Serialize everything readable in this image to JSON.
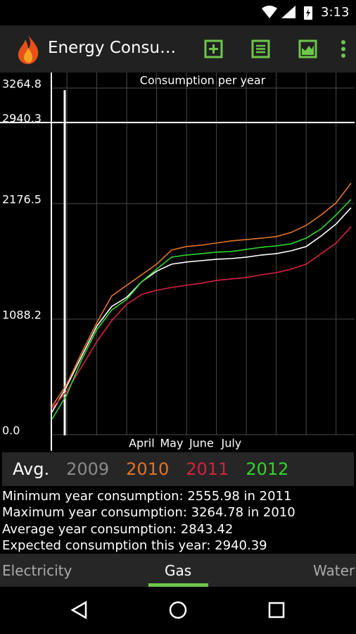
{
  "status_bar": {
    "time": "3:13"
  },
  "app_bar": {
    "title": "Energy Consu…"
  },
  "chart_data": {
    "type": "line",
    "title": "Consumption per year",
    "x": [
      1.5,
      2,
      2.5,
      3,
      3.5,
      4,
      4.5,
      5,
      5.5,
      6,
      6.5,
      7,
      7.5,
      8,
      8.5,
      9,
      9.5,
      10,
      10.5,
      11,
      11.5
    ],
    "xlim": [
      1.48,
      11.62
    ],
    "xticks": [
      2,
      3,
      4,
      5,
      6,
      7,
      8,
      9,
      10,
      11
    ],
    "month_labels": [
      {
        "value": 4.5,
        "label": "April"
      },
      {
        "value": 5.5,
        "label": "May"
      },
      {
        "value": 6.5,
        "label": "June"
      },
      {
        "value": 7.5,
        "label": "July"
      }
    ],
    "ylim": [
      0,
      3264.8
    ],
    "yticks": [
      {
        "value": 0,
        "label": "0.0"
      },
      1088.2,
      2176.5,
      2940.3,
      3264.8
    ],
    "grid": true,
    "ref_line": {
      "value": 2940.3,
      "color": "#ffffff"
    },
    "series": [
      {
        "name": "Avg.",
        "color": "#ffffff",
        "values": [
          212,
          458,
          743,
          1022,
          1208,
          1294,
          1440,
          1540,
          1606,
          1626,
          1639,
          1652,
          1659,
          1672,
          1692,
          1705,
          1732,
          1772,
          1871,
          1984,
          2137
        ]
      },
      {
        "name": "2009",
        "color": "#8a8a8a",
        "values": [
          null,
          null,
          null,
          null,
          null,
          null,
          null,
          null,
          null,
          null,
          null,
          null,
          null,
          null,
          null,
          null,
          null,
          null,
          null,
          null,
          null
        ]
      },
      {
        "name": "2010",
        "color": "#e07428",
        "values": [
          265,
          478,
          776,
          1055,
          1307,
          1407,
          1506,
          1606,
          1739,
          1772,
          1785,
          1805,
          1825,
          1838,
          1851,
          1865,
          1905,
          1971,
          2070,
          2183,
          2369
        ]
      },
      {
        "name": "2011",
        "color": "#d4213f",
        "values": [
          246,
          411,
          644,
          876,
          1075,
          1228,
          1321,
          1360,
          1387,
          1407,
          1427,
          1453,
          1467,
          1480,
          1506,
          1526,
          1559,
          1606,
          1705,
          1805,
          1958
        ]
      },
      {
        "name": "2012",
        "color": "#2ed62e",
        "values": [
          146,
          378,
          710,
          989,
          1175,
          1274,
          1440,
          1559,
          1672,
          1692,
          1705,
          1719,
          1725,
          1745,
          1765,
          1778,
          1798,
          1851,
          1938,
          2070,
          2216
        ]
      }
    ]
  },
  "stats": [
    "Minimum year consumption: 2555.98 in 2011",
    "Maximum year consumption: 3264.78 in 2010",
    "Average year consumption: 2843.42",
    "Expected consumption this year: 2940.39"
  ],
  "tabs": [
    "Electricity",
    "Gas",
    "Water"
  ]
}
